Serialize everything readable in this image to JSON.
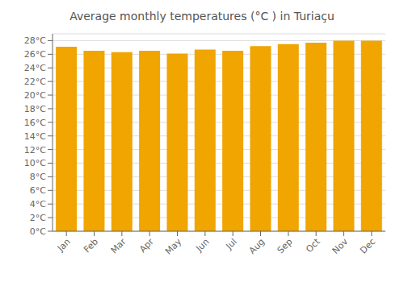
{
  "chart_data": {
    "type": "bar",
    "title": "Average monthly temperatures (°C ) in Turiaçu",
    "categories": [
      "Jan",
      "Feb",
      "Mar",
      "Apr",
      "May",
      "Jun",
      "Jul",
      "Aug",
      "Sep",
      "Oct",
      "Nov",
      "Dec"
    ],
    "values": [
      27.1,
      26.5,
      26.3,
      26.5,
      26.1,
      26.7,
      26.5,
      27.2,
      27.5,
      27.7,
      28.0,
      28.0
    ],
    "color": "#F0A500",
    "ylim": [
      0,
      29
    ],
    "yticks": [
      {
        "value": 0,
        "label": "0°C"
      },
      {
        "value": 2,
        "label": "2°C"
      },
      {
        "value": 4,
        "label": "4°C"
      },
      {
        "value": 6,
        "label": "6°C"
      },
      {
        "value": 8,
        "label": "8°C"
      },
      {
        "value": 10,
        "label": "10°C"
      },
      {
        "value": 12,
        "label": "12°C"
      },
      {
        "value": 14,
        "label": "14°C"
      },
      {
        "value": 16,
        "label": "16°C"
      },
      {
        "value": 18,
        "label": "18°C"
      },
      {
        "value": 20,
        "label": "20°C"
      },
      {
        "value": 22,
        "label": "22°C"
      },
      {
        "value": 24,
        "label": "24°C"
      },
      {
        "value": 26,
        "label": "26°C"
      },
      {
        "value": 28,
        "label": "28°C"
      }
    ],
    "grid": true
  }
}
